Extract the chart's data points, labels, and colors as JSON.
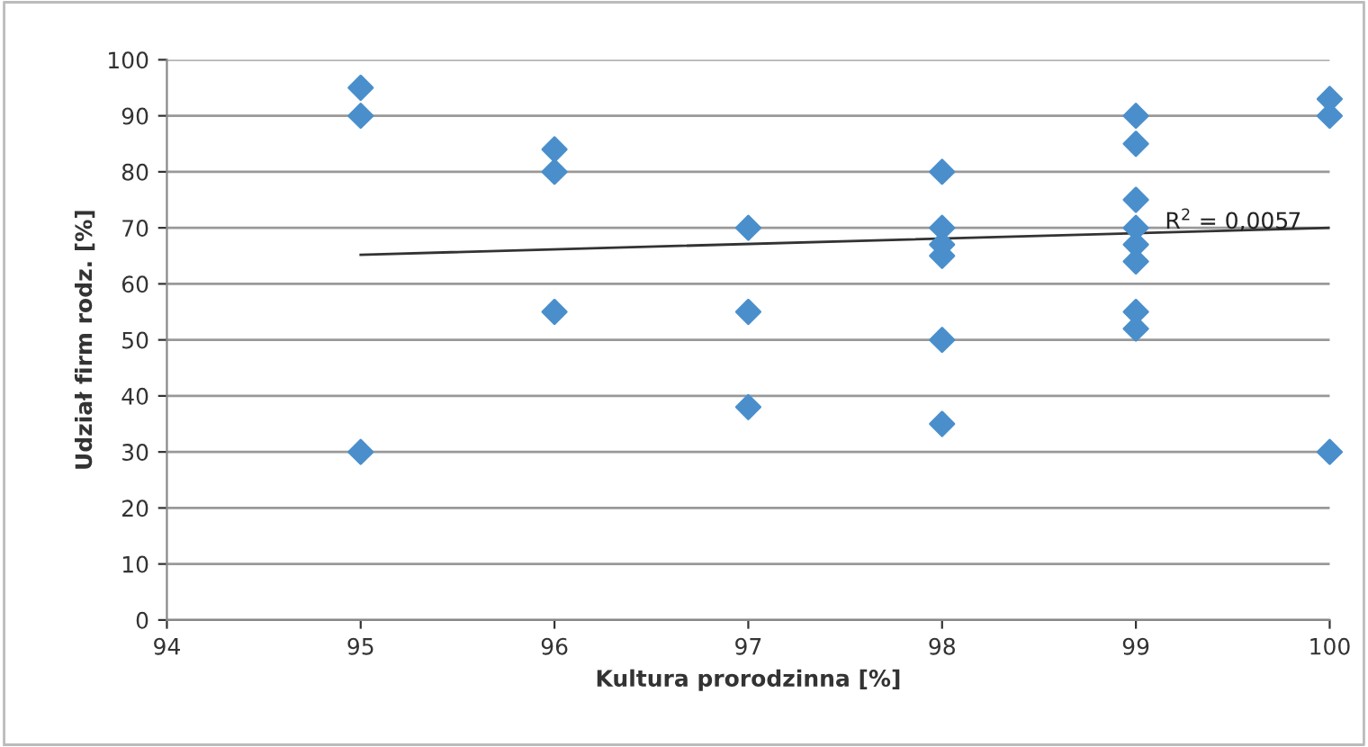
{
  "chart_data": {
    "type": "scatter",
    "xlabel": "Kultura prorodzinna [%]",
    "ylabel": "Udział firm rodz. [%]",
    "xlim": [
      94,
      100
    ],
    "xticks": [
      94,
      95,
      96,
      97,
      98,
      99,
      100
    ],
    "ylim": [
      0,
      100
    ],
    "yticks": [
      0,
      10,
      20,
      30,
      40,
      50,
      60,
      70,
      80,
      90,
      100
    ],
    "grid": "y",
    "marker": "diamond",
    "legend": false,
    "series": [
      {
        "color": "#4a8fcc",
        "x": [
          95,
          95,
          95,
          96,
          96,
          96,
          97,
          97,
          97,
          98,
          98,
          98,
          98,
          98,
          98,
          99,
          99,
          99,
          99,
          99,
          99,
          99,
          99,
          100,
          100,
          100
        ],
        "values": [
          95,
          90,
          30,
          84,
          80,
          55,
          70,
          55,
          38,
          80,
          70,
          67,
          65,
          50,
          35,
          90,
          85,
          75,
          70,
          67,
          64,
          55,
          52,
          93,
          90,
          30
        ]
      },
      {
        "type": "line",
        "color": "#333333",
        "marker": "none",
        "x": [
          95,
          100
        ],
        "values": [
          65.2,
          70
        ]
      }
    ],
    "annotations": [
      {
        "text": "R$^{2}$ = 0,0057",
        "x": 99.15,
        "y": 69
      }
    ]
  }
}
